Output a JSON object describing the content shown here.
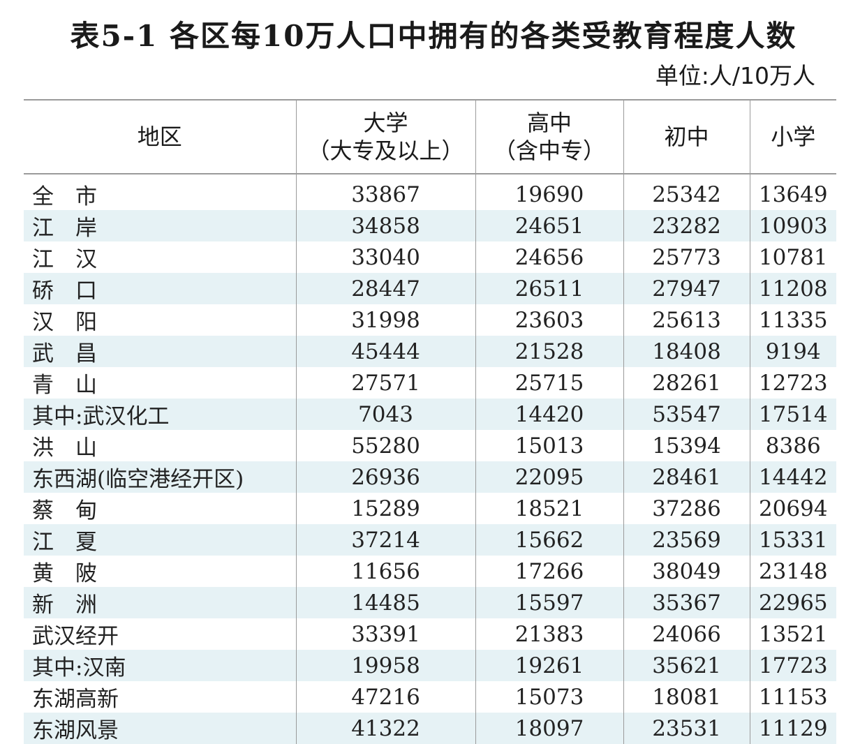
{
  "title": "表5-1  各区每10万人口中拥有的各类受教育程度人数",
  "unit": "单位:人/10万人",
  "headers": [
    {
      "line1": "地区",
      "line2": ""
    },
    {
      "line1": "大学",
      "line2": "（大专及以上）"
    },
    {
      "line1": "高中",
      "line2": "（含中专）"
    },
    {
      "line1": "初中",
      "line2": ""
    },
    {
      "line1": "小学",
      "line2": ""
    }
  ],
  "rows": [
    [
      "全　市",
      "33867",
      "19690",
      "25342",
      "13649"
    ],
    [
      "江　岸",
      "34858",
      "24651",
      "23282",
      "10903"
    ],
    [
      "江　汉",
      "33040",
      "24656",
      "25773",
      "10781"
    ],
    [
      "硚　口",
      "28447",
      "26511",
      "27947",
      "11208"
    ],
    [
      "汉　阳",
      "31998",
      "23603",
      "25613",
      "11335"
    ],
    [
      "武　昌",
      "45444",
      "21528",
      "18408",
      "9194"
    ],
    [
      "青　山",
      "27571",
      "25715",
      "28261",
      "12723"
    ],
    [
      "其中:武汉化工",
      "7043",
      "14420",
      "53547",
      "17514"
    ],
    [
      "洪　山",
      "55280",
      "15013",
      "15394",
      "8386"
    ],
    [
      "东西湖(临空港经开区)",
      "26936",
      "22095",
      "28461",
      "14442"
    ],
    [
      "蔡　甸",
      "15289",
      "18521",
      "37286",
      "20694"
    ],
    [
      "江　夏",
      "37214",
      "15662",
      "23569",
      "15331"
    ],
    [
      "黄　陂",
      "11656",
      "17266",
      "38049",
      "23148"
    ],
    [
      "新　洲",
      "14485",
      "15597",
      "35367",
      "22965"
    ],
    [
      "武汉经开",
      "33391",
      "21383",
      "24066",
      "13521"
    ],
    [
      "其中:汉南",
      "19958",
      "19261",
      "35621",
      "17723"
    ],
    [
      "东湖高新",
      "47216",
      "15073",
      "18081",
      "11153"
    ],
    [
      "东湖风景",
      "41322",
      "18097",
      "23531",
      "11129"
    ]
  ]
}
